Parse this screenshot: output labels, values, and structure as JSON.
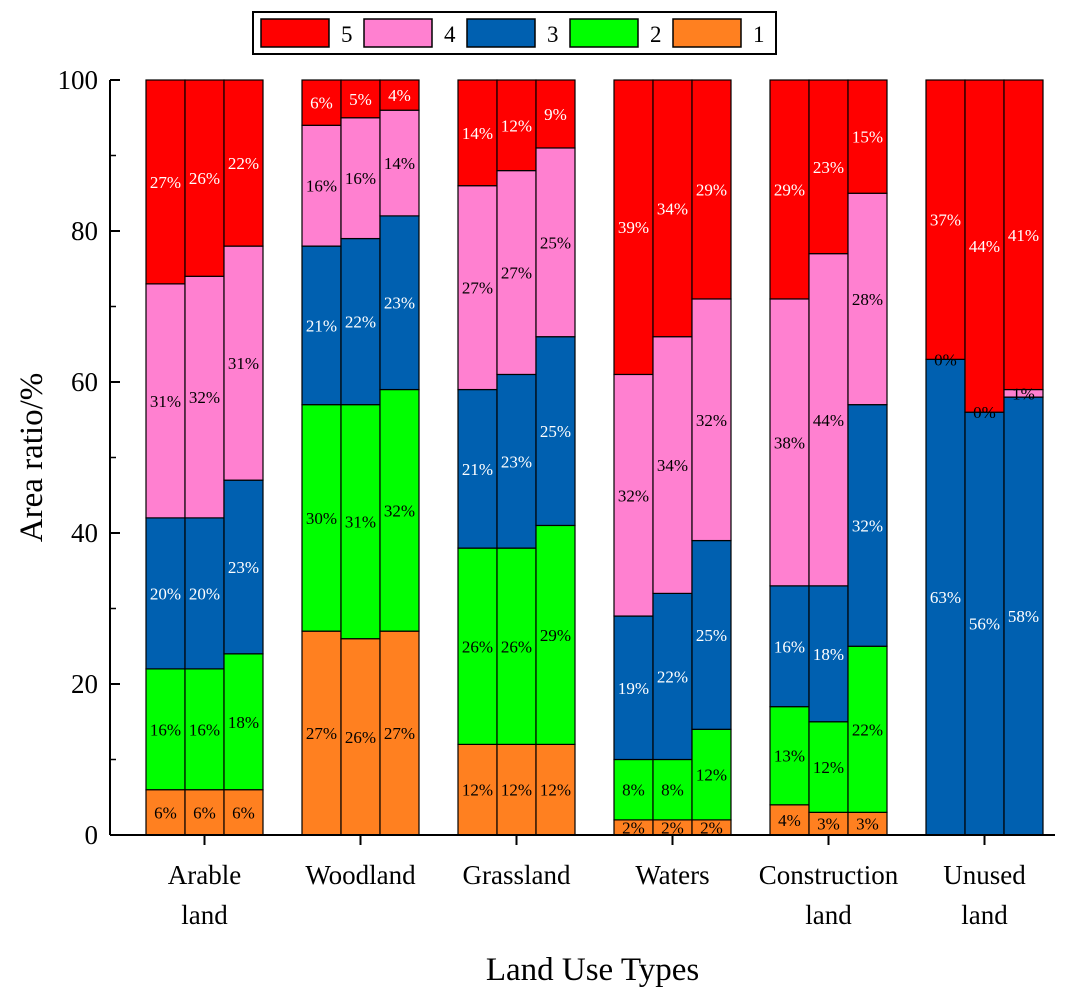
{
  "chart_data": {
    "type": "bar",
    "stacked": true,
    "title": "",
    "xlabel": "Land Use Types",
    "ylabel": "Area ratio/%",
    "ylim": [
      0,
      100
    ],
    "yticks": [
      0,
      20,
      40,
      60,
      80,
      100
    ],
    "ytick_labels": [
      "0",
      "20",
      "40",
      "60",
      "80",
      "100"
    ],
    "categories": [
      {
        "label_lines": [
          "Arable",
          "land"
        ]
      },
      {
        "label_lines": [
          "Woodland"
        ]
      },
      {
        "label_lines": [
          "Grassland"
        ]
      },
      {
        "label_lines": [
          "Waters"
        ]
      },
      {
        "label_lines": [
          "Construction",
          "land"
        ]
      },
      {
        "label_lines": [
          "Unused",
          "land"
        ]
      }
    ],
    "bars_per_category": 3,
    "series": [
      {
        "name": "1",
        "color": "#FF8020"
      },
      {
        "name": "2",
        "color": "#00FF00"
      },
      {
        "name": "3",
        "color": "#0060B0"
      },
      {
        "name": "4",
        "color": "#FF80D0"
      },
      {
        "name": "5",
        "color": "#FF0000"
      }
    ],
    "legend_order": [
      "5",
      "4",
      "3",
      "2",
      "1"
    ],
    "legend_position": "top-center",
    "bars": [
      {
        "category": 0,
        "values": [
          6,
          16,
          20,
          31,
          27
        ],
        "labels": [
          "6%",
          "16%",
          "20%",
          "31%",
          "27%"
        ]
      },
      {
        "category": 0,
        "values": [
          6,
          16,
          20,
          32,
          26
        ],
        "labels": [
          "6%",
          "16%",
          "20%",
          "32%",
          "26%"
        ]
      },
      {
        "category": 0,
        "values": [
          6,
          18,
          23,
          31,
          22
        ],
        "labels": [
          "6%",
          "18%",
          "23%",
          "31%",
          "22%"
        ]
      },
      {
        "category": 1,
        "values": [
          27,
          30,
          21,
          16,
          6
        ],
        "labels": [
          "27%",
          "30%",
          "21%",
          "16%",
          "6%"
        ]
      },
      {
        "category": 1,
        "values": [
          26,
          31,
          22,
          16,
          5
        ],
        "labels": [
          "26%",
          "31%",
          "22%",
          "16%",
          "5%"
        ]
      },
      {
        "category": 1,
        "values": [
          27,
          32,
          23,
          14,
          4
        ],
        "labels": [
          "27%",
          "32%",
          "23%",
          "14%",
          "4%"
        ]
      },
      {
        "category": 2,
        "values": [
          12,
          26,
          21,
          27,
          14
        ],
        "labels": [
          "12%",
          "26%",
          "21%",
          "27%",
          "14%"
        ]
      },
      {
        "category": 2,
        "values": [
          12,
          26,
          23,
          27,
          12
        ],
        "labels": [
          "12%",
          "26%",
          "23%",
          "27%",
          "12%"
        ]
      },
      {
        "category": 2,
        "values": [
          12,
          29,
          25,
          25,
          9
        ],
        "labels": [
          "12%",
          "29%",
          "25%",
          "25%",
          "9%"
        ]
      },
      {
        "category": 3,
        "values": [
          2,
          8,
          19,
          32,
          39
        ],
        "labels": [
          "2%",
          "8%",
          "19%",
          "32%",
          "39%"
        ]
      },
      {
        "category": 3,
        "values": [
          2,
          8,
          22,
          34,
          34
        ],
        "labels": [
          "2%",
          "8%",
          "22%",
          "34%",
          "34%"
        ]
      },
      {
        "category": 3,
        "values": [
          2,
          12,
          25,
          32,
          29
        ],
        "labels": [
          "2%",
          "12%",
          "25%",
          "32%",
          "29%"
        ]
      },
      {
        "category": 4,
        "values": [
          4,
          13,
          16,
          38,
          29
        ],
        "labels": [
          "4%",
          "13%",
          "16%",
          "38%",
          "29%"
        ]
      },
      {
        "category": 4,
        "values": [
          3,
          12,
          18,
          44,
          23
        ],
        "labels": [
          "3%",
          "12%",
          "18%",
          "44%",
          "23%"
        ]
      },
      {
        "category": 4,
        "values": [
          3,
          22,
          32,
          28,
          15
        ],
        "labels": [
          "3%",
          "22%",
          "32%",
          "28%",
          "15%"
        ]
      },
      {
        "category": 5,
        "values": [
          0,
          0,
          63,
          0,
          37
        ],
        "labels": [
          "",
          "",
          "63%",
          "0%",
          "37%"
        ]
      },
      {
        "category": 5,
        "values": [
          0,
          0,
          56,
          0,
          44
        ],
        "labels": [
          "",
          "",
          "56%",
          "0%",
          "44%"
        ]
      },
      {
        "category": 5,
        "values": [
          0,
          0,
          58,
          1,
          41
        ],
        "labels": [
          "",
          "",
          "58%",
          "1%",
          "41%"
        ]
      }
    ]
  }
}
